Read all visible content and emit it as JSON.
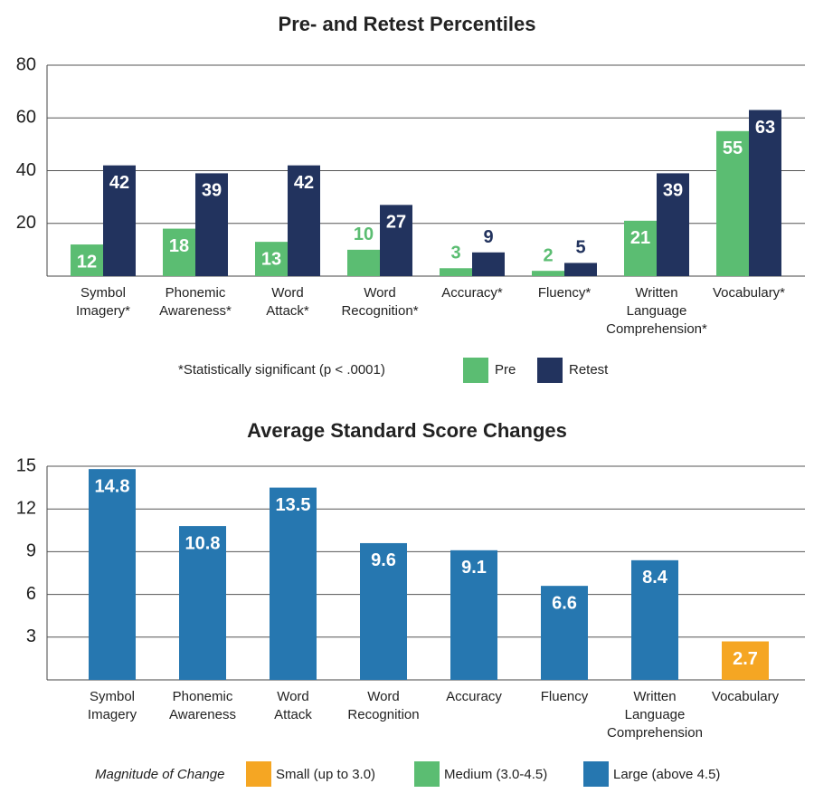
{
  "chart_data": [
    {
      "type": "grouped_bar",
      "title": "Pre- and Retest Percentiles",
      "categories": [
        "Symbol Imagery*",
        "Phonemic Awareness*",
        "Word Attack*",
        "Word Recognition*",
        "Accuracy*",
        "Fluency*",
        "Written Language Comprehension*",
        "Vocabulary*"
      ],
      "series": [
        {
          "name": "Pre",
          "color": "#5bbd72",
          "values": [
            12,
            18,
            13,
            10,
            3,
            2,
            21,
            55
          ]
        },
        {
          "name": "Retest",
          "color": "#22335e",
          "values": [
            42,
            39,
            42,
            27,
            9,
            5,
            39,
            63
          ]
        }
      ],
      "ylim": [
        0,
        80
      ],
      "yticks": [
        20,
        40,
        60,
        80
      ],
      "grid": true,
      "note": "*Statistically significant (p < .0001)"
    },
    {
      "type": "bar",
      "title": "Average Standard Score Changes",
      "categories": [
        "Symbol Imagery",
        "Phonemic Awareness",
        "Word Attack",
        "Word Recognition",
        "Accuracy",
        "Fluency",
        "Written Language Comprehension",
        "Vocabulary"
      ],
      "values": [
        14.8,
        10.8,
        13.5,
        9.6,
        9.1,
        6.6,
        8.4,
        2.7
      ],
      "colors": [
        "#2677b0",
        "#2677b0",
        "#2677b0",
        "#2677b0",
        "#2677b0",
        "#2677b0",
        "#2677b0",
        "#f5a623"
      ],
      "ylim": [
        0,
        15
      ],
      "yticks": [
        3,
        6,
        9,
        12,
        15
      ],
      "grid": true,
      "legend_title": "Magnitude of Change",
      "legend": [
        {
          "label": "Small (up to 3.0)",
          "color": "#f5a623"
        },
        {
          "label": "Medium (3.0-4.5)",
          "color": "#5bbd72"
        },
        {
          "label": "Large (above 4.5)",
          "color": "#2677b0"
        }
      ]
    }
  ]
}
